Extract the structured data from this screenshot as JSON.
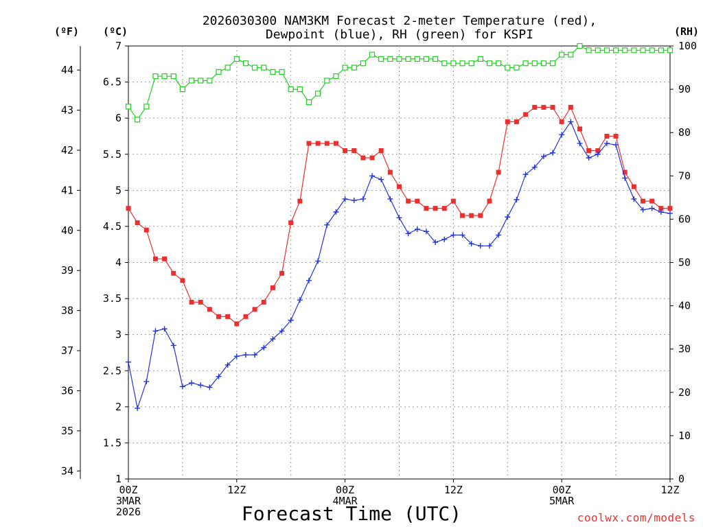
{
  "chart_data": {
    "type": "line",
    "title_line1": "2026030300 NAM3KM Forecast 2-meter Temperature (red),",
    "title_line2": "Dewpoint (blue), RH (green) for KSPI",
    "xlabel": "Forecast Time (UTC)",
    "credit": "coolwx.com/models",
    "units": {
      "fahrenheit": "(ºF)",
      "celsius": "(ºC)",
      "rh": "(RH)"
    },
    "x_range_hours": [
      0,
      60
    ],
    "x_ticks": [
      {
        "hour": 0,
        "label": "00Z",
        "date": "3MAR",
        "year": "2026"
      },
      {
        "hour": 12,
        "label": "12Z",
        "date": "",
        "year": ""
      },
      {
        "hour": 24,
        "label": "00Z",
        "date": "4MAR",
        "year": ""
      },
      {
        "hour": 36,
        "label": "12Z",
        "date": "",
        "year": ""
      },
      {
        "hour": 48,
        "label": "00Z",
        "date": "5MAR",
        "year": ""
      },
      {
        "hour": 60,
        "label": "12Z",
        "date": "",
        "year": ""
      }
    ],
    "celsius_axis": {
      "range": [
        1,
        7
      ],
      "ticks": [
        "1",
        "1.5",
        "2",
        "2.5",
        "3",
        "3.5",
        "4",
        "4.5",
        "5",
        "5.5",
        "6",
        "6.5",
        "7"
      ]
    },
    "fahrenheit_axis": {
      "ticks": [
        "34",
        "35",
        "36",
        "37",
        "38",
        "39",
        "40",
        "41",
        "42",
        "43",
        "44"
      ]
    },
    "rh_axis": {
      "range": [
        0,
        100
      ],
      "ticks": [
        "0",
        "10",
        "20",
        "30",
        "40",
        "50",
        "60",
        "70",
        "80",
        "90",
        "100"
      ]
    },
    "colors": {
      "temperature": "#e8302f",
      "dewpoint": "#2233dd",
      "rh": "#22cc22"
    },
    "series": [
      {
        "name": "Temperature",
        "unit": "C",
        "values": [
          4.75,
          4.55,
          4.45,
          4.05,
          4.05,
          3.85,
          3.75,
          3.45,
          3.45,
          3.35,
          3.25,
          3.25,
          3.15,
          3.25,
          3.35,
          3.45,
          3.65,
          3.85,
          4.55,
          4.85,
          5.65,
          5.65,
          5.65,
          5.65,
          5.55,
          5.55,
          5.45,
          5.45,
          5.55,
          5.25,
          5.05,
          4.85,
          4.85,
          4.75,
          4.75,
          4.75,
          4.85,
          4.65,
          4.65,
          4.65,
          4.85,
          5.25,
          5.95,
          5.95,
          6.05,
          6.15,
          6.15,
          6.15,
          5.95,
          6.15,
          5.85,
          5.55,
          5.55,
          5.75,
          5.75,
          5.25,
          5.05,
          4.85,
          4.85,
          4.75,
          4.75
        ]
      },
      {
        "name": "Dewpoint",
        "unit": "C",
        "values": [
          2.62,
          1.98,
          2.35,
          3.05,
          3.08,
          2.85,
          2.28,
          2.33,
          2.3,
          2.27,
          2.42,
          2.58,
          2.7,
          2.72,
          2.72,
          2.82,
          2.94,
          3.05,
          3.2,
          3.48,
          3.75,
          4.02,
          4.52,
          4.7,
          4.88,
          4.86,
          4.88,
          5.2,
          5.15,
          4.88,
          4.62,
          4.4,
          4.46,
          4.43,
          4.28,
          4.32,
          4.38,
          4.38,
          4.26,
          4.23,
          4.23,
          4.38,
          4.63,
          4.87,
          5.22,
          5.32,
          5.47,
          5.52,
          5.77,
          5.95,
          5.65,
          5.45,
          5.5,
          5.65,
          5.63,
          5.17,
          4.88,
          4.73,
          4.75,
          4.7,
          4.68
        ]
      },
      {
        "name": "RH",
        "unit": "%",
        "values": [
          86,
          83,
          86,
          93,
          93,
          93,
          90,
          92,
          92,
          92,
          94,
          95,
          97,
          96,
          95,
          95,
          94,
          94,
          90,
          90,
          87,
          89,
          92,
          93,
          95,
          95,
          96,
          98,
          97,
          97,
          97,
          97,
          97,
          97,
          97,
          96,
          96,
          96,
          96,
          97,
          96,
          96,
          95,
          95,
          96,
          96,
          96,
          96,
          98,
          98,
          100,
          99,
          99,
          99,
          99,
          99,
          99,
          99,
          99,
          99,
          99
        ]
      }
    ]
  }
}
